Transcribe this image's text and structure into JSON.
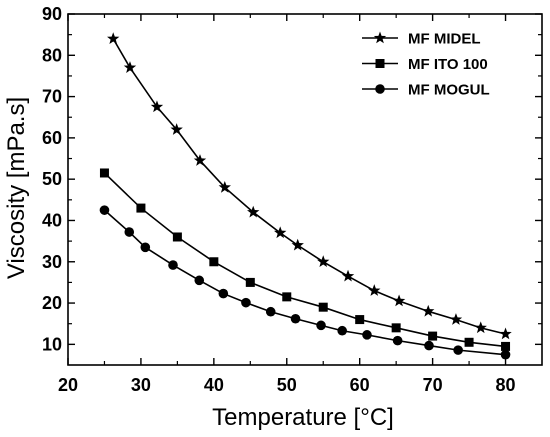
{
  "chart_data": {
    "type": "line",
    "title": "",
    "xlabel": "Temperature [°C]",
    "ylabel": "Viscosity [mPa.s]",
    "xlim": [
      20,
      85
    ],
    "ylim": [
      5,
      90
    ],
    "xticks": [
      20,
      30,
      40,
      50,
      60,
      70,
      80
    ],
    "yticks": [
      10,
      20,
      30,
      40,
      50,
      60,
      70,
      80,
      90
    ],
    "grid": false,
    "legend_position": "top-right",
    "series": [
      {
        "name": "MF MIDEL",
        "marker": "star",
        "color": "#000000",
        "x": [
          26.2,
          28.5,
          32.2,
          34.9,
          38.1,
          41.5,
          45.4,
          49.1,
          51.5,
          55.0,
          58.4,
          62.0,
          65.4,
          69.4,
          73.2,
          76.6,
          80.0
        ],
        "y": [
          84.0,
          77.0,
          67.5,
          62.0,
          54.5,
          48.0,
          42.0,
          37.0,
          34.0,
          30.0,
          26.5,
          23.0,
          20.5,
          18.0,
          16.0,
          14.0,
          12.5
        ]
      },
      {
        "name": "MF ITO 100",
        "marker": "square",
        "color": "#000000",
        "x": [
          25,
          30,
          35,
          40,
          45,
          50,
          55,
          60,
          65,
          70,
          75,
          80
        ],
        "y": [
          51.5,
          43.0,
          36.0,
          30.0,
          25.0,
          21.5,
          19.0,
          16.0,
          14.0,
          12.0,
          10.5,
          9.5
        ]
      },
      {
        "name": "MF MOGUL",
        "marker": "circle",
        "color": "#000000",
        "x": [
          25,
          28.4,
          30.6,
          34.4,
          38.0,
          41.3,
          44.4,
          47.8,
          51.2,
          54.7,
          57.6,
          61.0,
          65.2,
          69.5,
          73.5,
          80.0
        ],
        "y": [
          42.5,
          37.2,
          33.5,
          29.2,
          25.5,
          22.3,
          20.1,
          17.9,
          16.2,
          14.6,
          13.3,
          12.3,
          10.9,
          9.7,
          8.6,
          7.5
        ]
      }
    ]
  }
}
